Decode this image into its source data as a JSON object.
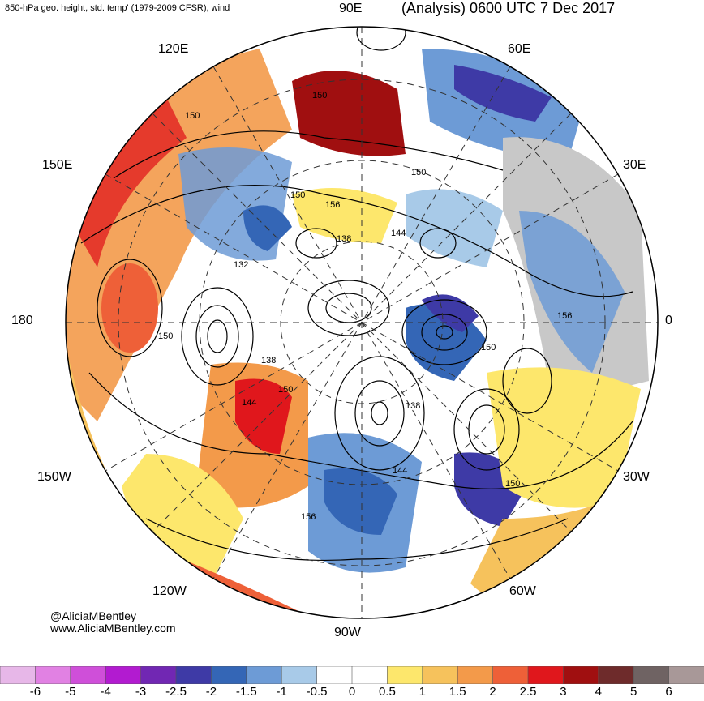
{
  "header": {
    "title_left": "850-hPa geo. height, std. temp' (1979-2009 CFSR), wind",
    "title_right": "(Analysis) 0600 UTC 7 Dec 2017"
  },
  "longitude_labels": {
    "lon_90e": "90E",
    "lon_60e": "60E",
    "lon_120e": "120E",
    "lon_150e": "150E",
    "lon_30e": "30E",
    "lon_180": "180",
    "lon_0": "0",
    "lon_150w": "150W",
    "lon_30w": "30W",
    "lon_120w": "120W",
    "lon_60w": "60W",
    "lon_90w": "90W"
  },
  "contour_labels": [
    "150",
    "150",
    "150",
    "156",
    "150",
    "144",
    "138",
    "132",
    "150",
    "138",
    "150",
    "144",
    "150",
    "138",
    "144",
    "150",
    "156",
    "156"
  ],
  "credits": {
    "handle": "@AliciaMBentley",
    "website": "www.AliciaMBentley.com"
  },
  "colorbar": {
    "colors": [
      "#e7b7e8",
      "#e181e3",
      "#cf4fd9",
      "#b21bd0",
      "#7127b3",
      "#3e3aa6",
      "#3466b6",
      "#6d9bd6",
      "#a8cae8",
      "#ffffff",
      "#ffffff",
      "#fde76c",
      "#f6c25c",
      "#f39a4a",
      "#ee6038",
      "#e0171c",
      "#a00f10",
      "#6e2b2b",
      "#6f6363",
      "#a89898"
    ],
    "labels": [
      "-6",
      "-5",
      "-4",
      "-3",
      "-2.5",
      "-2",
      "-1.5",
      "-1",
      "-0.5",
      "0",
      "0.5",
      "1",
      "1.5",
      "2",
      "2.5",
      "3",
      "4",
      "5",
      "6"
    ]
  },
  "colors": {
    "land_gray": "#c8c8c8",
    "warm_orange": "#f39a4a",
    "cold_blue": "#6d9bd6"
  }
}
